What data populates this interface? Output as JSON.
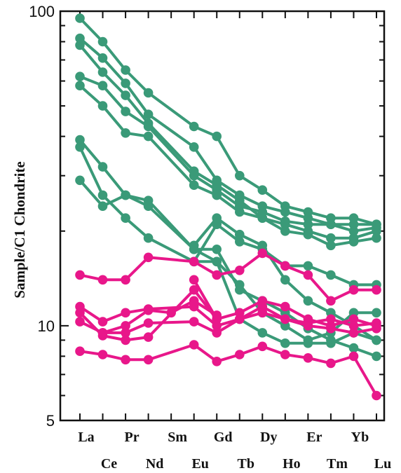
{
  "chart_data": {
    "type": "line",
    "title": "",
    "xlabel": "",
    "ylabel": "Sample/C1 Chondrite",
    "yscale": "log",
    "ylim": [
      5,
      100
    ],
    "ytick_labels": [
      "5",
      "10",
      "100"
    ],
    "categories": [
      "La",
      "Ce",
      "Pr",
      "Nd",
      "Sm",
      "Eu",
      "Gd",
      "Tb",
      "Dy",
      "Ho",
      "Er",
      "Tm",
      "Yb",
      "Lu"
    ],
    "grid": false,
    "legend": "none",
    "series": [
      {
        "color": "#3a9a78",
        "values": [
          95,
          80,
          65,
          55,
          null,
          43,
          40,
          30,
          27,
          24,
          23,
          22,
          22,
          21
        ]
      },
      {
        "color": "#3a9a78",
        "values": [
          82,
          71,
          59,
          47,
          null,
          37,
          29,
          26,
          24,
          23,
          22,
          21,
          20,
          20.5
        ]
      },
      {
        "color": "#3a9a78",
        "values": [
          78,
          64,
          54,
          44,
          null,
          31,
          28,
          25,
          22,
          21,
          20,
          19,
          19,
          20
        ]
      },
      {
        "color": "#3a9a78",
        "values": [
          62,
          58,
          48,
          43,
          null,
          30,
          27,
          24,
          23,
          21.5,
          21,
          21,
          21,
          21
        ]
      },
      {
        "color": "#3a9a78",
        "values": [
          58,
          50,
          41,
          40,
          null,
          28,
          26,
          23,
          22,
          20,
          19.5,
          18,
          18.5,
          19
        ]
      },
      {
        "color": "#3a9a78",
        "values": [
          39,
          32,
          26,
          25,
          null,
          17.5,
          17.5,
          13,
          12,
          11,
          9.8,
          9,
          8.5,
          8
        ]
      },
      {
        "color": "#3a9a78",
        "values": [
          37,
          26,
          22,
          19,
          null,
          16,
          16,
          13.5,
          11,
          10,
          9,
          9.5,
          11,
          11
        ]
      },
      {
        "color": "#3a9a78",
        "values": [
          29,
          24,
          26,
          24,
          null,
          17.5,
          16,
          10.5,
          9.5,
          8.8,
          8.8,
          8.8,
          9.5,
          9
        ]
      },
      {
        "color": "#3a9a78",
        "values": [
          null,
          null,
          null,
          null,
          null,
          16,
          21,
          18.5,
          17.5,
          15.5,
          15.5,
          14.5,
          13.5,
          13.5
        ]
      },
      {
        "color": "#3a9a78",
        "values": [
          null,
          null,
          null,
          null,
          null,
          18,
          22,
          19.5,
          18,
          14,
          12,
          11,
          10,
          9
        ]
      },
      {
        "color": "#e8178a",
        "values": [
          14.5,
          14,
          14,
          16.5,
          null,
          16,
          14.5,
          15,
          17,
          15.5,
          14.5,
          12,
          13,
          13
        ]
      },
      {
        "color": "#e8178a",
        "values": [
          null,
          null,
          null,
          null,
          null,
          14,
          10.5,
          11,
          12,
          11.5,
          10.5,
          10,
          10.5,
          10
        ]
      },
      {
        "color": "#e8178a",
        "values": [
          11.5,
          10.3,
          11,
          11.3,
          null,
          11.5,
          10,
          10.5,
          11.5,
          10.5,
          10.2,
          10.5,
          10,
          10.2
        ]
      },
      {
        "color": "#e8178a",
        "values": [
          10.3,
          9.5,
          9.5,
          10.2,
          null,
          10.3,
          9.5,
          10.5,
          11,
          10.5,
          10,
          9.8,
          9.5,
          9.8
        ]
      },
      {
        "color": "#e8178a",
        "values": [
          11,
          9.3,
          9,
          9.2,
          null,
          13,
          10.5,
          null,
          null,
          null,
          null,
          null,
          null,
          null
        ]
      },
      {
        "color": "#e8178a",
        "values": [
          null,
          9.5,
          10,
          11.2,
          11,
          12,
          10.8,
          null,
          null,
          null,
          null,
          null,
          null,
          null
        ]
      },
      {
        "color": "#e8178a",
        "values": [
          8.3,
          8.1,
          7.8,
          7.8,
          null,
          8.7,
          7.7,
          8.1,
          8.6,
          8.1,
          7.9,
          7.6,
          8,
          6
        ]
      }
    ]
  }
}
